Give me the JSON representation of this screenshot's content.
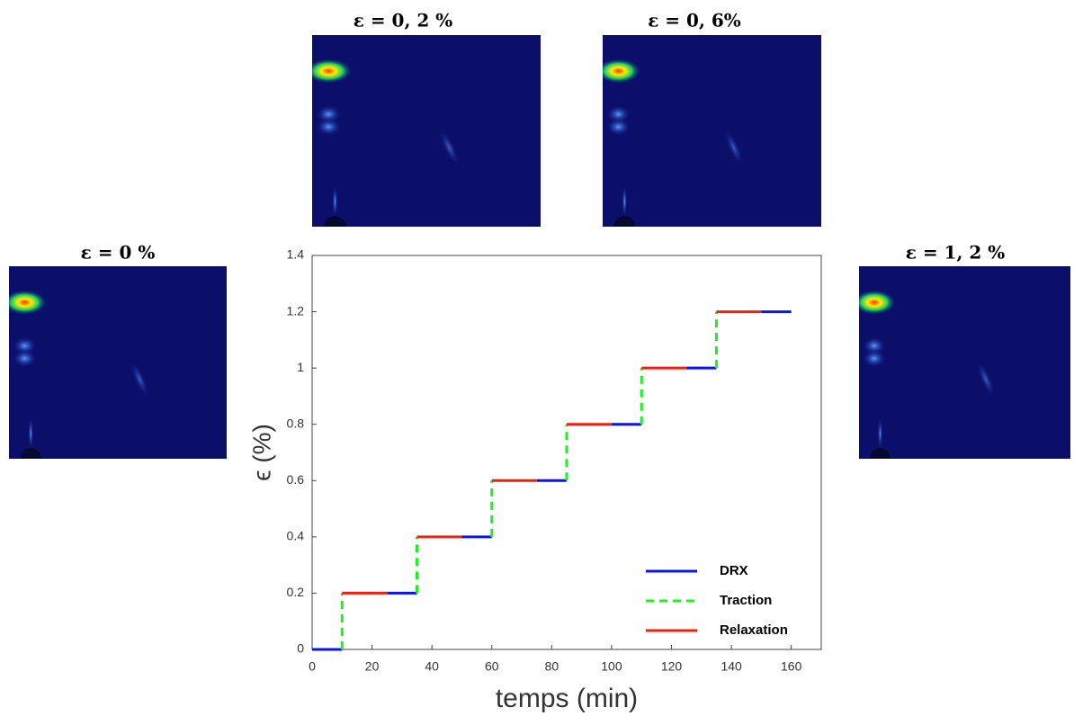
{
  "chart_data": {
    "type": "line",
    "xlabel": "temps (min)",
    "ylabel": "ϵ (%)",
    "xlim": [
      0,
      170
    ],
    "ylim": [
      0,
      1.4
    ],
    "xticks": [
      0,
      20,
      40,
      60,
      80,
      100,
      120,
      140,
      160
    ],
    "yticks": [
      0,
      0.2,
      0.4,
      0.6,
      0.8,
      1,
      1.2,
      1.4
    ],
    "grid": false,
    "legend": "lower right",
    "series": [
      {
        "name": "DRX",
        "color": "#0a14f0",
        "dash": false,
        "x": [
          0,
          10,
          null,
          25,
          35,
          null,
          50,
          60,
          null,
          75,
          85,
          null,
          100,
          110,
          null,
          125,
          135,
          null,
          150,
          160
        ],
        "values": [
          0,
          0,
          null,
          0.2,
          0.2,
          null,
          0.4,
          0.4,
          null,
          0.6,
          0.6,
          null,
          0.8,
          0.8,
          null,
          1,
          1,
          null,
          1.2,
          1.2
        ]
      },
      {
        "name": "Traction",
        "color": "#22ee22",
        "dash": true,
        "x": [
          10,
          10,
          null,
          35,
          35,
          null,
          60,
          60,
          null,
          85,
          85,
          null,
          110,
          110,
          null,
          135,
          135
        ],
        "values": [
          0,
          0.2,
          null,
          0.2,
          0.4,
          null,
          0.4,
          0.6,
          null,
          0.6,
          0.8,
          null,
          0.8,
          1,
          null,
          1,
          1.2
        ]
      },
      {
        "name": "Relaxation",
        "color": "#f02010",
        "dash": false,
        "x": [
          10,
          25,
          null,
          35,
          50,
          null,
          60,
          75,
          null,
          85,
          100,
          null,
          110,
          125,
          null,
          135,
          150
        ],
        "values": [
          0.2,
          0.2,
          null,
          0.4,
          0.4,
          null,
          0.6,
          0.6,
          null,
          0.8,
          0.8,
          null,
          1,
          1,
          null,
          1.2,
          1.2
        ]
      }
    ],
    "annotations": [
      "ε = 0 %",
      "ε = 0, 2 %",
      "ε = 0, 6%",
      "ε = 1, 2 %"
    ]
  }
}
